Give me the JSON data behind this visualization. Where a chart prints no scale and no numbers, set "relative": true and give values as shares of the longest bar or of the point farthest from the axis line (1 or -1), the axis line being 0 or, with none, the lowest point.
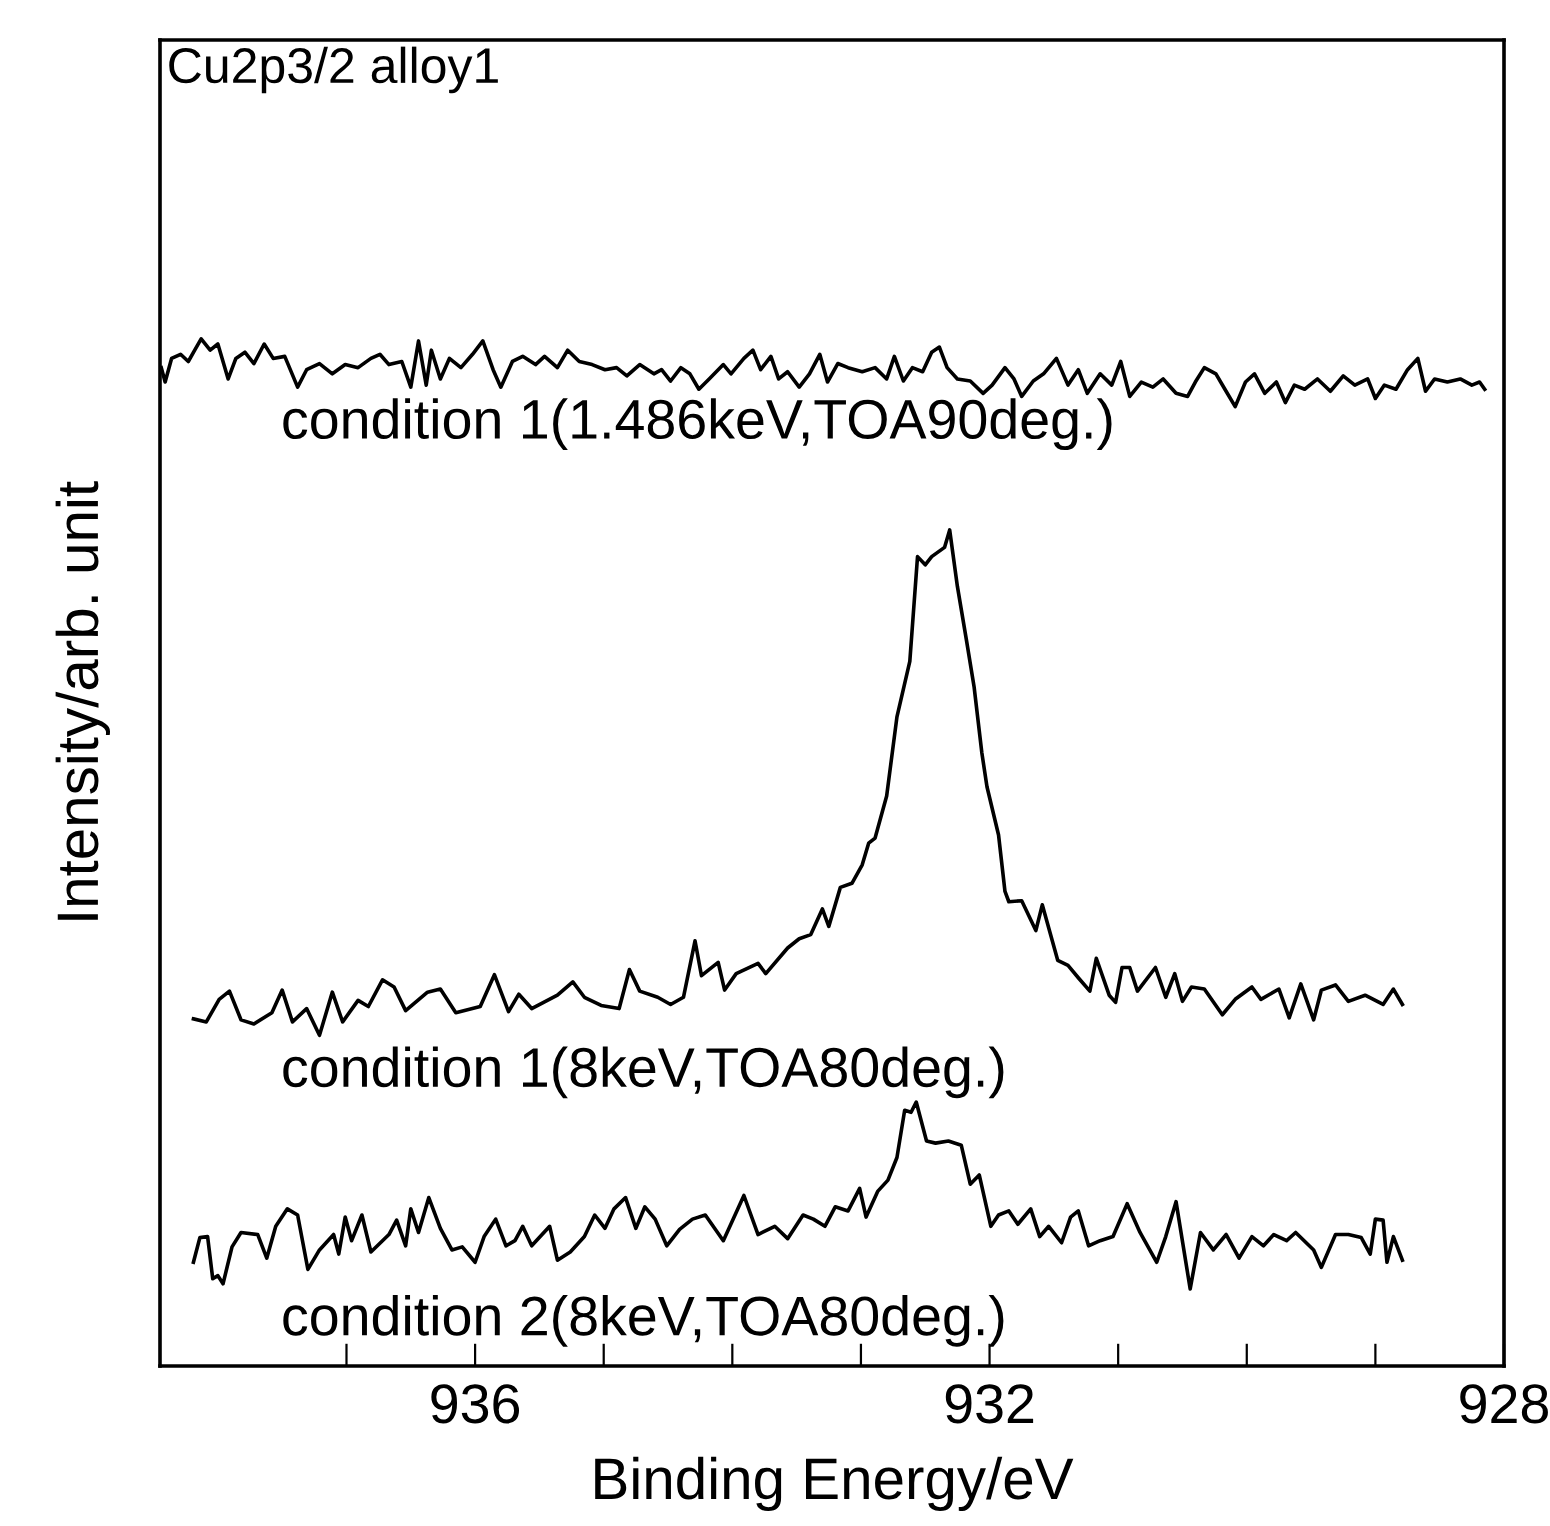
{
  "chart_data": {
    "type": "line",
    "relative": true,
    "xlabel": "Binding Energy/eV",
    "ylabel": "Intensity/arb. unit",
    "xlim": [
      938.45,
      928
    ],
    "xticks": [
      {
        "value": 937,
        "label": null
      },
      936,
      {
        "value": 935,
        "label": null
      },
      {
        "value": 934,
        "label": null
      },
      {
        "value": 933,
        "label": null
      },
      932,
      {
        "value": 931,
        "label": null
      },
      {
        "value": 930,
        "label": null
      },
      {
        "value": 929,
        "label": null
      },
      928
    ],
    "tick_labels": "x",
    "grid": false,
    "marker": "none",
    "line_style": "solid",
    "annotations": [
      "Cu2p3/2 alloy1"
    ],
    "series": [
      {
        "name": "condition 1(1.486keV,TOA90deg.)",
        "color": "#000000",
        "x": [
          938.44,
          938.41,
          938.36,
          938.29,
          938.23,
          938.18,
          938.13,
          938.06,
          938.0,
          937.92,
          937.86,
          937.79,
          937.72,
          937.64,
          937.57,
          937.48,
          937.38,
          937.31,
          937.21,
          937.11,
          937.01,
          936.91,
          936.81,
          936.74,
          936.67,
          936.57,
          936.5,
          936.44,
          936.38,
          936.34,
          936.27,
          936.2,
          936.11,
          936.02,
          935.94,
          935.86,
          935.8,
          935.71,
          935.63,
          935.53,
          935.46,
          935.36,
          935.28,
          935.19,
          935.09,
          934.99,
          934.9,
          934.82,
          934.72,
          934.61,
          934.55,
          934.48,
          934.4,
          934.33,
          934.26,
          934.18,
          934.07,
          934.01,
          933.91,
          933.84,
          933.78,
          933.7,
          933.64,
          933.57,
          933.48,
          933.4,
          933.32,
          933.26,
          933.18,
          933.1,
          932.99,
          932.89,
          932.8,
          932.74,
          932.67,
          932.6,
          932.52,
          932.45,
          932.39,
          932.33,
          932.25,
          932.15,
          932.05,
          931.98,
          931.88,
          931.81,
          931.75,
          931.66,
          931.58,
          931.48,
          931.39,
          931.31,
          931.24,
          931.14,
          931.05,
          930.98,
          930.91,
          930.82,
          930.73,
          930.65,
          930.55,
          930.46,
          930.4,
          930.33,
          930.24,
          930.17,
          930.09,
          930.01,
          929.94,
          929.86,
          929.77,
          929.7,
          929.63,
          929.55,
          929.45,
          929.35,
          929.25,
          929.16,
          929.06,
          929.0,
          928.93,
          928.84,
          928.75,
          928.67,
          928.61,
          928.54,
          928.44,
          928.34,
          928.25,
          928.19,
          928.15
        ],
        "values": [
          0.972,
          0.958,
          0.981,
          0.985,
          0.978,
          0.989,
          1.0,
          0.989,
          0.995,
          0.961,
          0.981,
          0.987,
          0.976,
          0.995,
          0.981,
          0.983,
          0.953,
          0.97,
          0.976,
          0.966,
          0.975,
          0.972,
          0.981,
          0.985,
          0.975,
          0.978,
          0.953,
          0.998,
          0.955,
          0.989,
          0.961,
          0.981,
          0.972,
          0.985,
          0.998,
          0.97,
          0.953,
          0.978,
          0.983,
          0.975,
          0.983,
          0.972,
          0.989,
          0.978,
          0.975,
          0.97,
          0.972,
          0.964,
          0.975,
          0.966,
          0.97,
          0.959,
          0.972,
          0.966,
          0.951,
          0.961,
          0.975,
          0.966,
          0.981,
          0.989,
          0.97,
          0.983,
          0.961,
          0.968,
          0.953,
          0.966,
          0.985,
          0.958,
          0.976,
          0.972,
          0.968,
          0.972,
          0.961,
          0.983,
          0.959,
          0.972,
          0.968,
          0.987,
          0.992,
          0.972,
          0.961,
          0.959,
          0.947,
          0.955,
          0.972,
          0.961,
          0.944,
          0.959,
          0.966,
          0.981,
          0.955,
          0.97,
          0.947,
          0.966,
          0.955,
          0.978,
          0.944,
          0.958,
          0.953,
          0.961,
          0.947,
          0.944,
          0.958,
          0.972,
          0.966,
          0.951,
          0.934,
          0.958,
          0.966,
          0.947,
          0.958,
          0.938,
          0.955,
          0.951,
          0.961,
          0.949,
          0.964,
          0.955,
          0.961,
          0.942,
          0.955,
          0.951,
          0.97,
          0.981,
          0.949,
          0.961,
          0.958,
          0.961,
          0.955,
          0.958,
          0.951
        ]
      },
      {
        "name": "condition 1(8keV,TOA80deg.)",
        "color": "#000000",
        "x": [
          938.19,
          938.09,
          937.99,
          937.91,
          937.82,
          937.72,
          937.58,
          937.5,
          937.42,
          937.31,
          937.21,
          937.11,
          937.03,
          936.91,
          936.83,
          936.72,
          936.63,
          936.54,
          936.37,
          936.27,
          936.15,
          935.96,
          935.85,
          935.74,
          935.66,
          935.56,
          935.36,
          935.24,
          935.15,
          935.02,
          934.88,
          934.8,
          934.72,
          934.58,
          934.48,
          934.38,
          934.29,
          934.24,
          934.11,
          934.06,
          933.97,
          933.8,
          933.74,
          933.57,
          933.48,
          933.39,
          933.3,
          933.25,
          933.16,
          933.07,
          932.99,
          932.94,
          932.89,
          932.8,
          932.72,
          932.62,
          932.56,
          932.5,
          932.45,
          932.35,
          932.31,
          932.25,
          932.18,
          932.12,
          932.06,
          932.02,
          931.93,
          931.88,
          931.85,
          931.75,
          931.64,
          931.59,
          931.47,
          931.39,
          931.31,
          931.22,
          931.17,
          931.07,
          931.02,
          930.97,
          930.91,
          930.85,
          930.71,
          930.63,
          930.56,
          930.5,
          930.43,
          930.33,
          930.19,
          930.09,
          929.96,
          929.89,
          929.75,
          929.67,
          929.58,
          929.48,
          929.42,
          929.31,
          929.21,
          929.08,
          928.94,
          928.86,
          928.79
        ],
        "values": [
          0.338,
          0.335,
          0.357,
          0.365,
          0.337,
          0.333,
          0.344,
          0.366,
          0.335,
          0.348,
          0.322,
          0.364,
          0.335,
          0.356,
          0.35,
          0.376,
          0.369,
          0.346,
          0.364,
          0.367,
          0.344,
          0.35,
          0.381,
          0.345,
          0.362,
          0.348,
          0.361,
          0.374,
          0.359,
          0.351,
          0.348,
          0.386,
          0.365,
          0.359,
          0.352,
          0.359,
          0.414,
          0.38,
          0.393,
          0.366,
          0.382,
          0.392,
          0.382,
          0.407,
          0.416,
          0.42,
          0.445,
          0.428,
          0.466,
          0.47,
          0.488,
          0.509,
          0.514,
          0.555,
          0.632,
          0.686,
          0.788,
          0.78,
          0.788,
          0.797,
          0.814,
          0.759,
          0.707,
          0.661,
          0.597,
          0.564,
          0.517,
          0.462,
          0.452,
          0.453,
          0.424,
          0.449,
          0.395,
          0.39,
          0.378,
          0.365,
          0.397,
          0.361,
          0.354,
          0.388,
          0.388,
          0.365,
          0.388,
          0.359,
          0.382,
          0.355,
          0.369,
          0.367,
          0.342,
          0.357,
          0.369,
          0.357,
          0.367,
          0.339,
          0.372,
          0.337,
          0.366,
          0.371,
          0.355,
          0.361,
          0.352,
          0.367,
          0.352
        ]
      },
      {
        "name": "condition 2(8keV,TOA80deg.)",
        "color": "#000000",
        "x": [
          938.19,
          938.14,
          938.08,
          938.04,
          938.0,
          937.96,
          937.89,
          937.82,
          937.69,
          937.62,
          937.55,
          937.46,
          937.38,
          937.3,
          937.21,
          937.1,
          937.06,
          937.01,
          936.96,
          936.88,
          936.81,
          936.67,
          936.61,
          936.54,
          936.5,
          936.44,
          936.36,
          936.27,
          936.18,
          936.1,
          936.0,
          935.93,
          935.84,
          935.76,
          935.69,
          935.63,
          935.56,
          935.42,
          935.36,
          935.26,
          935.15,
          935.07,
          934.99,
          934.92,
          934.83,
          934.75,
          934.68,
          934.6,
          934.51,
          934.41,
          934.31,
          934.21,
          934.07,
          933.91,
          933.8,
          933.67,
          933.57,
          933.45,
          933.37,
          933.28,
          933.2,
          933.1,
          933.01,
          932.96,
          932.87,
          932.79,
          932.72,
          932.66,
          932.61,
          932.57,
          932.49,
          932.42,
          932.32,
          932.22,
          932.15,
          932.08,
          931.99,
          931.93,
          931.85,
          931.78,
          931.68,
          931.61,
          931.54,
          931.44,
          931.37,
          931.31,
          931.23,
          931.14,
          931.04,
          930.93,
          930.83,
          930.7,
          930.63,
          930.55,
          930.44,
          930.36,
          930.26,
          930.16,
          930.06,
          929.96,
          929.87,
          929.79,
          929.69,
          929.62,
          929.48,
          929.42,
          929.31,
          929.21,
          929.11,
          929.04,
          929.0,
          928.94,
          928.91,
          928.86,
          928.79
        ],
        "values": [
          0.101,
          0.125,
          0.126,
          0.085,
          0.088,
          0.08,
          0.116,
          0.13,
          0.128,
          0.105,
          0.136,
          0.153,
          0.147,
          0.094,
          0.113,
          0.128,
          0.109,
          0.145,
          0.122,
          0.147,
          0.111,
          0.128,
          0.142,
          0.117,
          0.153,
          0.13,
          0.164,
          0.134,
          0.113,
          0.116,
          0.101,
          0.126,
          0.143,
          0.117,
          0.122,
          0.136,
          0.117,
          0.136,
          0.103,
          0.111,
          0.126,
          0.147,
          0.134,
          0.153,
          0.164,
          0.134,
          0.155,
          0.143,
          0.117,
          0.133,
          0.143,
          0.147,
          0.122,
          0.166,
          0.128,
          0.136,
          0.124,
          0.147,
          0.143,
          0.136,
          0.155,
          0.151,
          0.173,
          0.145,
          0.17,
          0.181,
          0.203,
          0.249,
          0.247,
          0.257,
          0.219,
          0.217,
          0.219,
          0.215,
          0.177,
          0.186,
          0.136,
          0.147,
          0.151,
          0.138,
          0.153,
          0.126,
          0.136,
          0.12,
          0.145,
          0.151,
          0.117,
          0.122,
          0.126,
          0.158,
          0.13,
          0.101,
          0.126,
          0.16,
          0.075,
          0.13,
          0.113,
          0.128,
          0.105,
          0.126,
          0.117,
          0.128,
          0.122,
          0.13,
          0.113,
          0.096,
          0.128,
          0.128,
          0.125,
          0.109,
          0.143,
          0.142,
          0.101,
          0.126,
          0.103
        ]
      }
    ]
  }
}
